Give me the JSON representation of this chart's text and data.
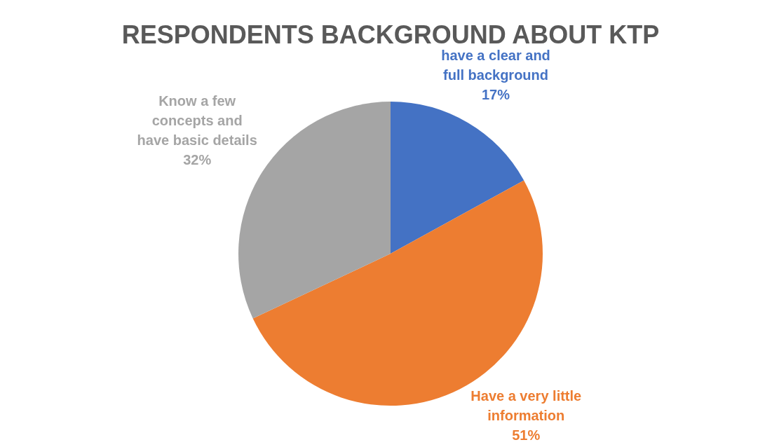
{
  "chart_data": {
    "type": "pie",
    "title": "RESPONDENTS BACKGROUND ABOUT KTP",
    "categories": [
      "have a clear and full background",
      "Have a very little information",
      "Know a few concepts and have basic details"
    ],
    "values": [
      17,
      51,
      32
    ],
    "value_labels": [
      "17%",
      "51%",
      "32%"
    ],
    "colors": [
      "#4472c4",
      "#ed7d31",
      "#a5a5a5"
    ],
    "legend": false
  }
}
